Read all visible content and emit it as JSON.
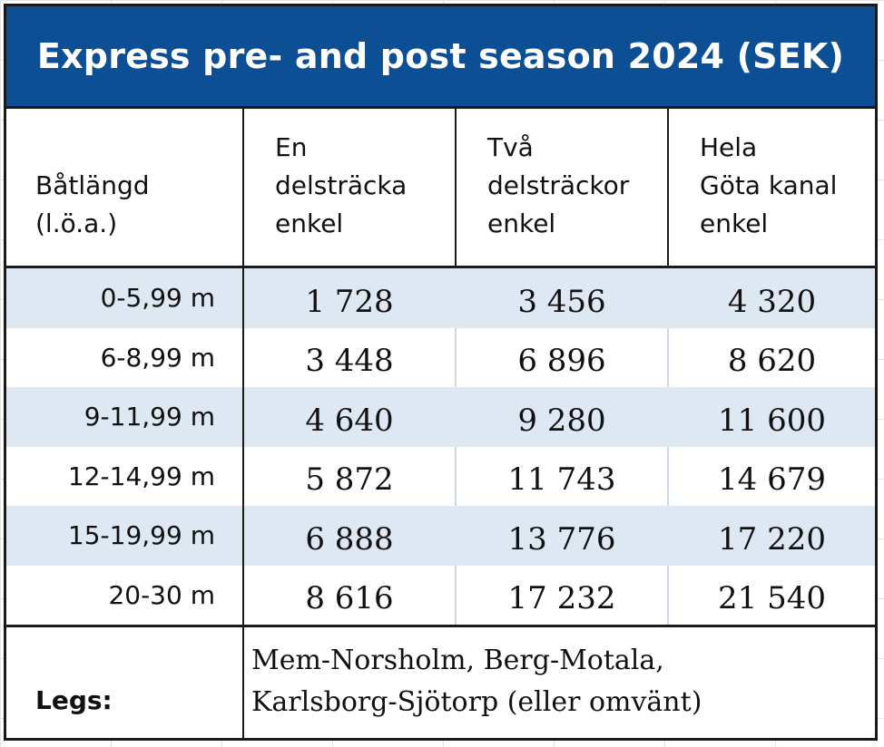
{
  "title": "Express pre- and post season 2024 (SEK)",
  "headers": [
    "Båtlängd\n(l.ö.a.)",
    "En\ndelsträcka\nenkel",
    "Två\ndelsträckor\nenkel",
    "Hela\nGöta kanal\nenkel"
  ],
  "rows": [
    {
      "length": "0-5,99 m",
      "one_leg": "1 728",
      "two_legs": "3 456",
      "whole_canal": "4 320"
    },
    {
      "length": "6-8,99 m",
      "one_leg": "3 448",
      "two_legs": "6 896",
      "whole_canal": "8 620"
    },
    {
      "length": "9-11,99 m",
      "one_leg": "4 640",
      "two_legs": "9 280",
      "whole_canal": "11 600"
    },
    {
      "length": "12-14,99 m",
      "one_leg": "5 872",
      "two_legs": "11 743",
      "whole_canal": "14 679"
    },
    {
      "length": "15-19,99 m",
      "one_leg": "6 888",
      "two_legs": "13 776",
      "whole_canal": "17 220"
    },
    {
      "length": "20-30 m",
      "one_leg": "8 616",
      "two_legs": "17 232",
      "whole_canal": "21 540"
    }
  ],
  "legs": {
    "label": "Legs:",
    "text": "Mem-Norsholm, Berg-Motala,\nKarlsborg-Sjötorp (eller omvänt)"
  },
  "colors": {
    "title_background": "#0d4f95",
    "row_shade": "#dde8f3"
  }
}
